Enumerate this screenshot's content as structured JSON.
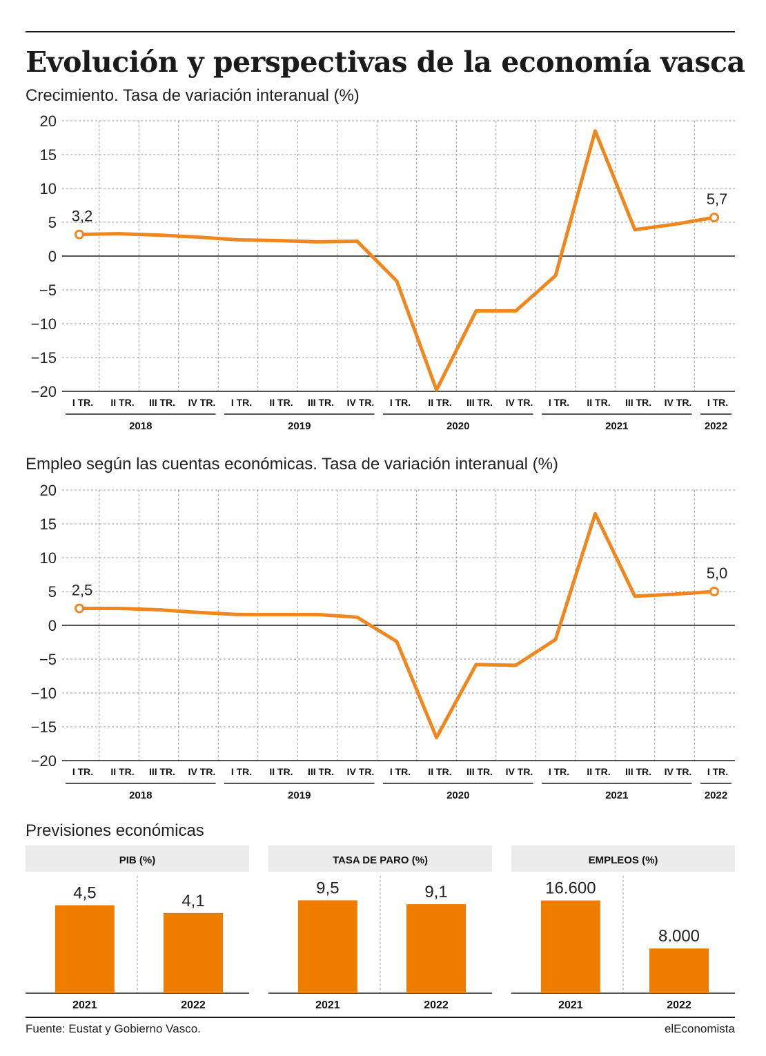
{
  "title": "Evolución y perspectivas de la economía vasca",
  "source": "Fuente: Eustat y Gobierno Vasco.",
  "brand": "elEconomista",
  "forecast_heading": "Previsiones económicas",
  "line_color": "#f0871e",
  "bar_color": "#ee7d00",
  "chart_data": [
    {
      "type": "line",
      "title": "Crecimiento. Tasa de variación interanual (%)",
      "xlabel": "",
      "ylabel": "",
      "ylim": [
        -20,
        20
      ],
      "yticks": [
        "20",
        "15",
        "10",
        "5",
        "0",
        "−5",
        "−10",
        "−15",
        "−20"
      ],
      "categories": [
        "I TR.",
        "II TR.",
        "III TR.",
        "IV TR.",
        "I TR.",
        "II TR.",
        "III TR.",
        "IV TR.",
        "I TR.",
        "II TR.",
        "III TR.",
        "IV TR.",
        "I TR.",
        "II TR.",
        "III TR.",
        "IV TR.",
        "I TR."
      ],
      "years": [
        "2018",
        "2019",
        "2020",
        "2021",
        "2022"
      ],
      "values": [
        3.2,
        3.3,
        3.1,
        2.8,
        2.4,
        2.3,
        2.1,
        2.2,
        -3.7,
        -19.8,
        -8.1,
        -8.1,
        -2.9,
        18.5,
        3.9,
        4.7,
        5.7
      ],
      "annotations": {
        "first": "3,2",
        "last": "5,7"
      },
      "grid": true
    },
    {
      "type": "line",
      "title": "Empleo según las cuentas económicas. Tasa de variación interanual (%)",
      "xlabel": "",
      "ylabel": "",
      "ylim": [
        -20,
        20
      ],
      "yticks": [
        "20",
        "15",
        "10",
        "5",
        "0",
        "−5",
        "−10",
        "−15",
        "−20"
      ],
      "categories": [
        "I TR.",
        "II TR.",
        "III TR.",
        "IV TR.",
        "I TR.",
        "II TR.",
        "III TR.",
        "IV TR.",
        "I TR.",
        "II TR.",
        "III TR.",
        "IV TR.",
        "I TR.",
        "II TR.",
        "III TR.",
        "IV TR.",
        "I TR."
      ],
      "years": [
        "2018",
        "2019",
        "2020",
        "2021",
        "2022"
      ],
      "values": [
        2.5,
        2.5,
        2.3,
        1.9,
        1.6,
        1.6,
        1.6,
        1.2,
        -2.4,
        -16.6,
        -5.8,
        -5.9,
        -2.1,
        16.5,
        4.3,
        4.6,
        5.0
      ],
      "annotations": {
        "first": "2,5",
        "last": "5,0"
      },
      "grid": true
    },
    {
      "type": "bar",
      "title": "PIB (%)",
      "categories": [
        "2021",
        "2022"
      ],
      "values": [
        4.5,
        4.1
      ],
      "labels": [
        "4,5",
        "4,1"
      ],
      "ylim": [
        0,
        6
      ]
    },
    {
      "type": "bar",
      "title": "TASA DE PARO (%)",
      "categories": [
        "2021",
        "2022"
      ],
      "values": [
        9.5,
        9.1
      ],
      "labels": [
        "9,5",
        "9,1"
      ],
      "ylim": [
        0,
        12
      ]
    },
    {
      "type": "bar",
      "title": "EMPLEOS (%)",
      "categories": [
        "2021",
        "2022"
      ],
      "values": [
        16600,
        8000
      ],
      "labels": [
        "16.600",
        "8.000"
      ],
      "ylim": [
        0,
        21000
      ]
    }
  ]
}
